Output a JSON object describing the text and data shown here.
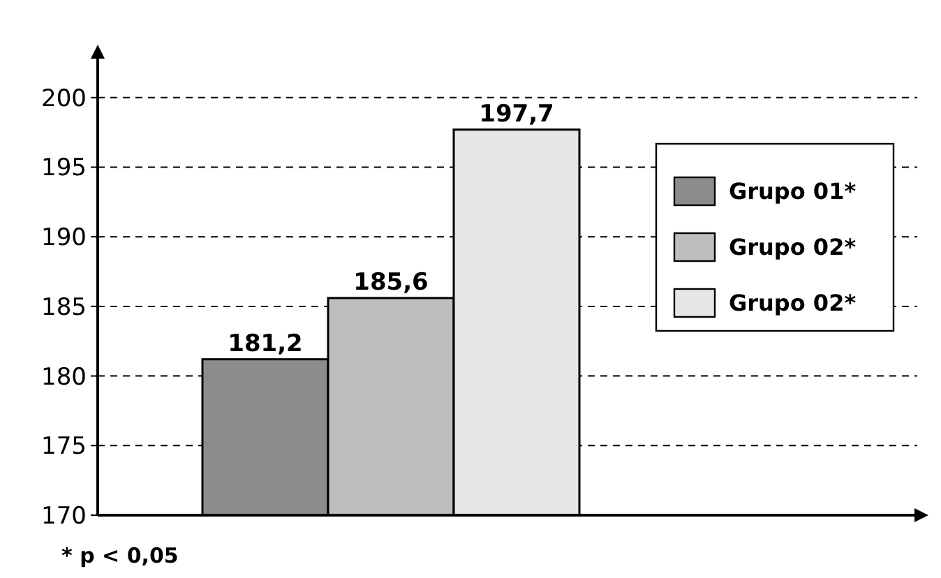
{
  "chart_data": {
    "type": "bar",
    "categories": [
      null
    ],
    "series": [
      {
        "name": "Grupo 01*",
        "color": "#8c8c8c",
        "values": [
          181.2
        ],
        "value_labels": [
          "181,2"
        ]
      },
      {
        "name": "Grupo 02*",
        "color": "#bebebe",
        "values": [
          185.6
        ],
        "value_labels": [
          "185,6"
        ]
      },
      {
        "name": "Grupo 02*",
        "color": "#e6e6e6",
        "values": [
          197.7
        ],
        "value_labels": [
          "197,7"
        ]
      }
    ],
    "ylim": [
      170,
      203
    ],
    "yticks": [
      170,
      175,
      180,
      185,
      190,
      195,
      200
    ],
    "grid": "y",
    "legend": "right",
    "annotations": [
      "* p < 0,05"
    ]
  }
}
